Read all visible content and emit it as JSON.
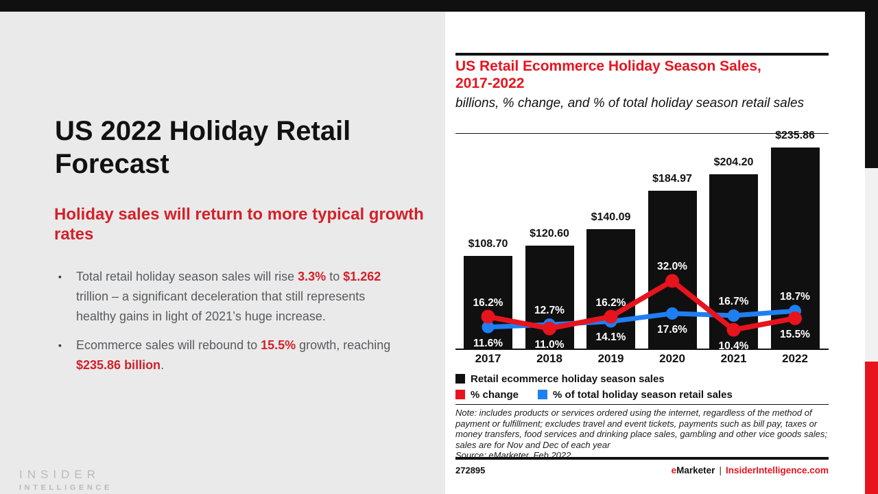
{
  "colors": {
    "bg_left": "#eaeaea",
    "bar_black": "#101010",
    "red_chart": "#e7141e",
    "red_left": "#d32029",
    "blue": "#1f7ff2",
    "body_gray": "#595a5d",
    "logo_gray": "#b9babb",
    "strip_gray": "#f1f1f1"
  },
  "slide": {
    "title": "US 2022 Holiday Retail Forecast",
    "subtitle": "Holiday sales will return to more typical growth rates",
    "bullets": [
      {
        "runs": [
          {
            "t": "Total retail holiday season sales will rise "
          },
          {
            "t": "3.3%",
            "red": true
          },
          {
            "t": " to "
          },
          {
            "t": "$1.262",
            "red": true
          },
          {
            "t": " trillion – a significant deceleration that still represents healthy gains in light of 2021’s huge increase."
          }
        ]
      },
      {
        "runs": [
          {
            "t": "Ecommerce sales will rebound to "
          },
          {
            "t": "15.5%",
            "red": true
          },
          {
            "t": " growth, reaching "
          },
          {
            "t": "$235.86 billion",
            "red": true
          },
          {
            "t": "."
          }
        ]
      }
    ],
    "logo": {
      "line1": "INSIDER",
      "line2": "INTELLIGENCE"
    }
  },
  "chart": {
    "heading": "US Retail Ecommerce Holiday Season Sales, 2017-2022",
    "subheading": "billions, % change, and % of total holiday season retail sales",
    "note": "Note: includes products or services ordered using the internet, regardless of the method of payment or fulfillment; excludes travel and event tickets, payments such as bill pay, taxes or money transfers, food services and drinking place sales, gambling and other vice goods sales; sales are for Nov and Dec of each year",
    "source": "Source: eMarketer, Feb 2022",
    "chart_id": "272895",
    "brand": {
      "e": "e",
      "rest": "Marketer",
      "separator": "|",
      "site": "InsiderIntelligence.com"
    }
  },
  "chart_data": {
    "type": "bar",
    "title": "US Retail Ecommerce Holiday Season Sales, 2017-2022",
    "subtitle": "billions, % change, and % of total holiday season retail sales",
    "categories": [
      "2017",
      "2018",
      "2019",
      "2020",
      "2021",
      "2022"
    ],
    "series": [
      {
        "name": "Retail ecommerce holiday season sales",
        "type": "bar",
        "unit": "USD billions",
        "values": [
          108.7,
          120.6,
          140.09,
          184.97,
          204.2,
          235.86
        ],
        "color": "#101010"
      },
      {
        "name": "% change",
        "type": "line",
        "unit": "percent",
        "values": [
          16.2,
          11.0,
          16.2,
          32.0,
          10.4,
          15.5
        ],
        "color": "#e7141e"
      },
      {
        "name": "% of total holiday season retail sales",
        "type": "line",
        "unit": "percent",
        "values": [
          11.6,
          12.7,
          14.1,
          17.6,
          16.7,
          18.7
        ],
        "color": "#1f7ff2"
      }
    ],
    "label_above_series": [
      1,
      2,
      1,
      1,
      2,
      2
    ],
    "ylim_bars": [
      0,
      250
    ],
    "grid": false,
    "legend_position": "bottom"
  }
}
